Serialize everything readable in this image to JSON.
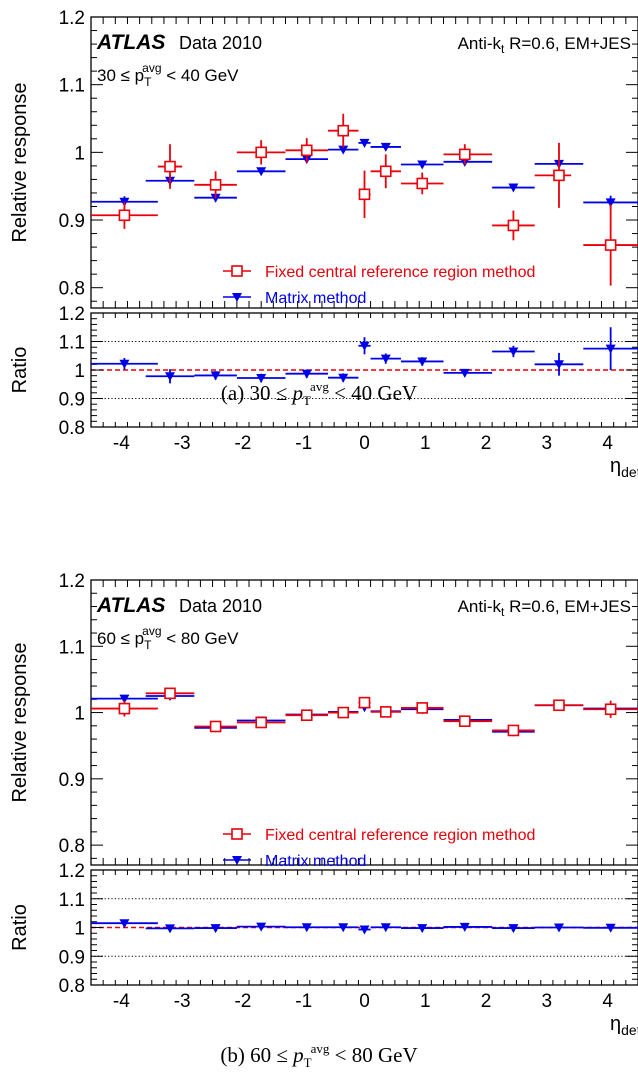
{
  "chart_data": [
    {
      "type": "scatter",
      "atlas_label": "ATLAS",
      "data_label": "Data 2010",
      "jet_label_pre": "Anti-k",
      "jet_label_sub": "t",
      "jet_label_post": " R=0.6, EM+JES",
      "bin_label_pre": "30 ≤ p",
      "bin_label_sub": "T",
      "bin_label_sup": "avg",
      "bin_label_post": " < 40 GeV",
      "ylabel": "Relative response",
      "ratio_ylabel": "Ratio",
      "xlabel": "η",
      "xlabel_sub": "det",
      "xlim": [
        -4.5,
        4.5
      ],
      "ylim": [
        0.77,
        1.2
      ],
      "ratio_ylim": [
        0.8,
        1.2
      ],
      "grid": false,
      "ratio_gridlines": [
        0.9,
        1.1
      ],
      "ratio_reference": 1.0,
      "x_ticks": [
        "-4",
        "-3",
        "-2",
        "-1",
        "0",
        "1",
        "2",
        "3",
        "4"
      ],
      "y_ticks": [
        "0.8",
        "0.9",
        "1",
        "1.1",
        "1.2"
      ],
      "ratio_y_ticks": [
        "0.8",
        "0.9",
        "1",
        "1.1",
        "1.2"
      ],
      "legend_position": "bottom-right",
      "caption_pre": "(a) 30 ≤ ",
      "caption_post": " < 40 GeV",
      "series": [
        {
          "name": "Fixed central reference region method",
          "color": "#e8000b",
          "marker": "open-square",
          "points": [
            {
              "x": -3.95,
              "xlo": -4.5,
              "xhi": -3.4,
              "y": 0.907,
              "err": 0.02
            },
            {
              "x": -3.2,
              "xlo": -3.4,
              "xhi": -3.0,
              "y": 0.979,
              "err": 0.033
            },
            {
              "x": -2.45,
              "xlo": -2.8,
              "xhi": -2.1,
              "y": 0.952,
              "err": 0.02
            },
            {
              "x": -1.7,
              "xlo": -2.1,
              "xhi": -1.3,
              "y": 1.0,
              "err": 0.018
            },
            {
              "x": -0.95,
              "xlo": -1.3,
              "xhi": -0.6,
              "y": 1.003,
              "err": 0.018
            },
            {
              "x": -0.35,
              "xlo": -0.6,
              "xhi": -0.1,
              "y": 1.032,
              "err": 0.025
            },
            {
              "x": 0.0,
              "xlo": -0.1,
              "xhi": 0.1,
              "y": 0.938,
              "err": 0.035
            },
            {
              "x": 0.35,
              "xlo": 0.1,
              "xhi": 0.6,
              "y": 0.972,
              "err": 0.025
            },
            {
              "x": 0.95,
              "xlo": 0.6,
              "xhi": 1.3,
              "y": 0.954,
              "err": 0.016
            },
            {
              "x": 1.65,
              "xlo": 1.3,
              "xhi": 2.1,
              "y": 0.997,
              "err": 0.015
            },
            {
              "x": 2.45,
              "xlo": 2.1,
              "xhi": 2.8,
              "y": 0.892,
              "err": 0.022
            },
            {
              "x": 3.2,
              "xlo": 2.8,
              "xhi": 3.4,
              "y": 0.966,
              "err": 0.048
            },
            {
              "x": 4.05,
              "xlo": 3.6,
              "xhi": 4.5,
              "y": 0.863,
              "err": 0.06
            }
          ]
        },
        {
          "name": "Matrix method",
          "color": "#0000e6",
          "marker": "filled-triangle-down",
          "points": [
            {
              "x": -3.95,
              "xlo": -4.5,
              "xhi": -3.4,
              "y": 0.927,
              "err": 0.008
            },
            {
              "x": -3.2,
              "xlo": -3.6,
              "xhi": -2.8,
              "y": 0.958,
              "err": 0.008
            },
            {
              "x": -2.45,
              "xlo": -2.8,
              "xhi": -2.1,
              "y": 0.933,
              "err": 0.006
            },
            {
              "x": -1.7,
              "xlo": -2.1,
              "xhi": -1.3,
              "y": 0.972,
              "err": 0.004
            },
            {
              "x": -0.95,
              "xlo": -1.3,
              "xhi": -0.6,
              "y": 0.99,
              "err": 0.004
            },
            {
              "x": -0.35,
              "xlo": -0.6,
              "xhi": -0.1,
              "y": 1.004,
              "err": 0.004
            },
            {
              "x": 0.0,
              "xlo": -0.1,
              "xhi": 0.1,
              "y": 1.014,
              "err": 0.003
            },
            {
              "x": 0.35,
              "xlo": 0.1,
              "xhi": 0.6,
              "y": 1.008,
              "err": 0.003
            },
            {
              "x": 0.95,
              "xlo": 0.6,
              "xhi": 1.3,
              "y": 0.982,
              "err": 0.003
            },
            {
              "x": 1.65,
              "xlo": 1.3,
              "xhi": 2.1,
              "y": 0.986,
              "err": 0.003
            },
            {
              "x": 2.45,
              "xlo": 2.1,
              "xhi": 2.8,
              "y": 0.948,
              "err": 0.004
            },
            {
              "x": 3.2,
              "xlo": 2.8,
              "xhi": 3.6,
              "y": 0.983,
              "err": 0.005
            },
            {
              "x": 4.05,
              "xlo": 3.6,
              "xhi": 4.5,
              "y": 0.926,
              "err": 0.01
            }
          ]
        },
        {
          "name": "",
          "axis": "ratio",
          "color": "#0000e6",
          "marker": "filled-triangle-down",
          "points": [
            {
              "x": -3.95,
              "xlo": -4.5,
              "xhi": -3.4,
              "y": 1.022,
              "err": 0.02
            },
            {
              "x": -3.2,
              "xlo": -3.6,
              "xhi": -2.8,
              "y": 0.978,
              "err": 0.025
            },
            {
              "x": -2.45,
              "xlo": -2.8,
              "xhi": -2.1,
              "y": 0.981,
              "err": 0.015
            },
            {
              "x": -1.7,
              "xlo": -2.1,
              "xhi": -1.3,
              "y": 0.972,
              "err": 0.015
            },
            {
              "x": -0.95,
              "xlo": -1.3,
              "xhi": -0.6,
              "y": 0.987,
              "err": 0.015
            },
            {
              "x": -0.35,
              "xlo": -0.6,
              "xhi": -0.1,
              "y": 0.973,
              "err": 0.015
            },
            {
              "x": 0.0,
              "xlo": -0.1,
              "xhi": 0.1,
              "y": 1.085,
              "err": 0.03
            },
            {
              "x": 0.35,
              "xlo": 0.1,
              "xhi": 0.6,
              "y": 1.04,
              "err": 0.018
            },
            {
              "x": 0.95,
              "xlo": 0.6,
              "xhi": 1.3,
              "y": 1.03,
              "err": 0.015
            },
            {
              "x": 1.65,
              "xlo": 1.3,
              "xhi": 2.1,
              "y": 0.99,
              "err": 0.012
            },
            {
              "x": 2.45,
              "xlo": 2.1,
              "xhi": 2.8,
              "y": 1.065,
              "err": 0.02
            },
            {
              "x": 3.2,
              "xlo": 2.8,
              "xhi": 3.6,
              "y": 1.02,
              "err": 0.04
            },
            {
              "x": 4.05,
              "xlo": 3.6,
              "xhi": 4.5,
              "y": 1.075,
              "err": 0.075
            }
          ]
        }
      ]
    },
    {
      "type": "scatter",
      "atlas_label": "ATLAS",
      "data_label": "Data 2010",
      "jet_label_pre": "Anti-k",
      "jet_label_sub": "t",
      "jet_label_post": " R=0.6, EM+JES",
      "bin_label_pre": "60 ≤ p",
      "bin_label_sub": "T",
      "bin_label_sup": "avg",
      "bin_label_post": " < 80 GeV",
      "ylabel": "Relative response",
      "ratio_ylabel": "Ratio",
      "xlabel": "η",
      "xlabel_sub": "det",
      "xlim": [
        -4.5,
        4.5
      ],
      "ylim": [
        0.77,
        1.2
      ],
      "ratio_ylim": [
        0.8,
        1.2
      ],
      "grid": false,
      "ratio_gridlines": [
        0.9,
        1.1
      ],
      "ratio_reference": 1.0,
      "x_ticks": [
        "-4",
        "-3",
        "-2",
        "-1",
        "0",
        "1",
        "2",
        "3",
        "4"
      ],
      "y_ticks": [
        "0.8",
        "0.9",
        "1",
        "1.1",
        "1.2"
      ],
      "ratio_y_ticks": [
        "0.8",
        "0.9",
        "1",
        "1.1",
        "1.2"
      ],
      "legend_position": "bottom-right",
      "caption_pre": "(b) 60 ≤ ",
      "caption_post": " < 80 GeV",
      "series": [
        {
          "name": "Fixed central reference region method",
          "color": "#e8000b",
          "marker": "open-square",
          "points": [
            {
              "x": -3.95,
              "xlo": -4.5,
              "xhi": -3.4,
              "y": 1.006,
              "err": 0.012
            },
            {
              "x": -3.2,
              "xlo": -3.6,
              "xhi": -2.8,
              "y": 1.029,
              "err": 0.004
            },
            {
              "x": -2.45,
              "xlo": -2.8,
              "xhi": -2.1,
              "y": 0.979,
              "err": 0.004
            },
            {
              "x": -1.7,
              "xlo": -2.1,
              "xhi": -1.3,
              "y": 0.985,
              "err": 0.004
            },
            {
              "x": -0.95,
              "xlo": -1.3,
              "xhi": -0.6,
              "y": 0.996,
              "err": 0.004
            },
            {
              "x": -0.35,
              "xlo": -0.6,
              "xhi": -0.1,
              "y": 1.0,
              "err": 0.004
            },
            {
              "x": 0.0,
              "xlo": -0.1,
              "xhi": 0.1,
              "y": 1.015,
              "err": 0.006
            },
            {
              "x": 0.35,
              "xlo": 0.1,
              "xhi": 0.6,
              "y": 1.001,
              "err": 0.004
            },
            {
              "x": 0.95,
              "xlo": 0.6,
              "xhi": 1.3,
              "y": 1.007,
              "err": 0.004
            },
            {
              "x": 1.65,
              "xlo": 1.3,
              "xhi": 2.1,
              "y": 0.987,
              "err": 0.004
            },
            {
              "x": 2.45,
              "xlo": 2.1,
              "xhi": 2.8,
              "y": 0.973,
              "err": 0.004
            },
            {
              "x": 3.2,
              "xlo": 2.8,
              "xhi": 3.6,
              "y": 1.011,
              "err": 0.006
            },
            {
              "x": 4.05,
              "xlo": 3.6,
              "xhi": 4.5,
              "y": 1.005,
              "err": 0.013
            }
          ]
        },
        {
          "name": "Matrix method",
          "color": "#0000e6",
          "marker": "filled-triangle-down",
          "points": [
            {
              "x": -3.95,
              "xlo": -4.5,
              "xhi": -3.4,
              "y": 1.021,
              "err": 0.003
            },
            {
              "x": -3.2,
              "xlo": -3.6,
              "xhi": -2.8,
              "y": 1.025,
              "err": 0.003
            },
            {
              "x": -2.45,
              "xlo": -2.8,
              "xhi": -2.1,
              "y": 0.977,
              "err": 0.002
            },
            {
              "x": -1.7,
              "xlo": -2.1,
              "xhi": -1.3,
              "y": 0.988,
              "err": 0.002
            },
            {
              "x": -0.95,
              "xlo": -1.3,
              "xhi": -0.6,
              "y": 0.997,
              "err": 0.002
            },
            {
              "x": -0.35,
              "xlo": -0.6,
              "xhi": -0.1,
              "y": 1.001,
              "err": 0.002
            },
            {
              "x": 0.0,
              "xlo": -0.1,
              "xhi": 0.1,
              "y": 1.008,
              "err": 0.002
            },
            {
              "x": 0.35,
              "xlo": 0.1,
              "xhi": 0.6,
              "y": 1.002,
              "err": 0.002
            },
            {
              "x": 0.95,
              "xlo": 0.6,
              "xhi": 1.3,
              "y": 1.005,
              "err": 0.002
            },
            {
              "x": 1.65,
              "xlo": 1.3,
              "xhi": 2.1,
              "y": 0.989,
              "err": 0.002
            },
            {
              "x": 2.45,
              "xlo": 2.1,
              "xhi": 2.8,
              "y": 0.971,
              "err": 0.002
            },
            {
              "x": 3.2,
              "xlo": 2.8,
              "xhi": 3.6,
              "y": 1.011,
              "err": 0.002
            },
            {
              "x": 4.05,
              "xlo": 3.6,
              "xhi": 4.5,
              "y": 1.006,
              "err": 0.003
            }
          ]
        },
        {
          "name": "",
          "axis": "ratio",
          "color": "#0000e6",
          "marker": "filled-triangle-down",
          "points": [
            {
              "x": -3.95,
              "xlo": -4.5,
              "xhi": -3.4,
              "y": 1.015,
              "err": 0.008
            },
            {
              "x": -3.2,
              "xlo": -3.6,
              "xhi": -2.8,
              "y": 0.997,
              "err": 0.005
            },
            {
              "x": -2.45,
              "xlo": -2.8,
              "xhi": -2.1,
              "y": 0.998,
              "err": 0.004
            },
            {
              "x": -1.7,
              "xlo": -2.1,
              "xhi": -1.3,
              "y": 1.003,
              "err": 0.004
            },
            {
              "x": -0.95,
              "xlo": -1.3,
              "xhi": -0.6,
              "y": 1.001,
              "err": 0.004
            },
            {
              "x": -0.35,
              "xlo": -0.6,
              "xhi": -0.1,
              "y": 1.001,
              "err": 0.004
            },
            {
              "x": 0.0,
              "xlo": -0.1,
              "xhi": 0.1,
              "y": 0.993,
              "err": 0.006
            },
            {
              "x": 0.35,
              "xlo": 0.1,
              "xhi": 0.6,
              "y": 1.001,
              "err": 0.004
            },
            {
              "x": 0.95,
              "xlo": 0.6,
              "xhi": 1.3,
              "y": 0.998,
              "err": 0.004
            },
            {
              "x": 1.65,
              "xlo": 1.3,
              "xhi": 2.1,
              "y": 1.002,
              "err": 0.004
            },
            {
              "x": 2.45,
              "xlo": 2.1,
              "xhi": 2.8,
              "y": 0.998,
              "err": 0.004
            },
            {
              "x": 3.2,
              "xlo": 2.8,
              "xhi": 3.6,
              "y": 1.0,
              "err": 0.005
            },
            {
              "x": 4.05,
              "xlo": 3.6,
              "xhi": 4.5,
              "y": 0.999,
              "err": 0.01
            }
          ]
        }
      ]
    }
  ]
}
